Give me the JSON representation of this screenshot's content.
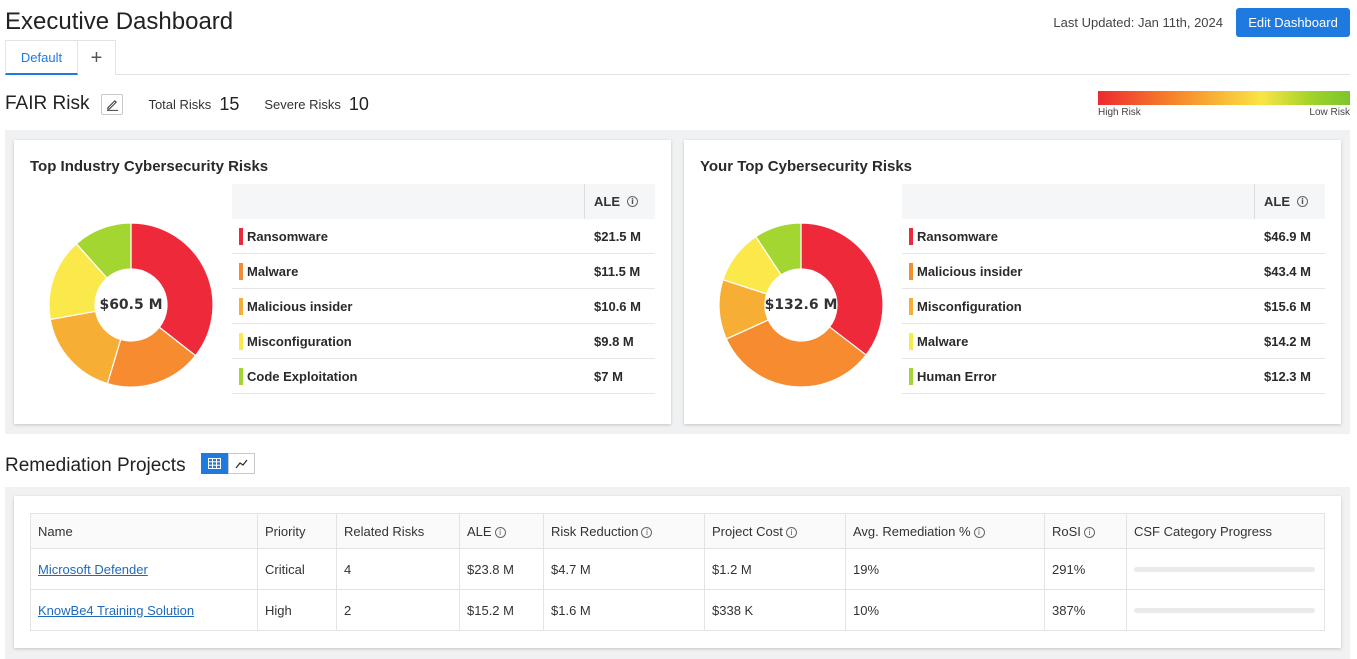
{
  "header": {
    "title": "Executive Dashboard",
    "last_updated": "Last Updated: Jan 11th, 2024",
    "edit_button": "Edit Dashboard"
  },
  "tabs": [
    {
      "label": "Default",
      "active": true
    },
    {
      "label": "+",
      "icon": "plus-icon"
    }
  ],
  "fair": {
    "title": "FAIR Risk",
    "edit_icon": "pencil-icon",
    "total_risks_label": "Total Risks",
    "total_risks_value": "15",
    "severe_risks_label": "Severe Risks",
    "severe_risks_value": "10",
    "scale_high": "High Risk",
    "scale_low": "Low Risk"
  },
  "industry": {
    "title": "Top Industry Cybersecurity Risks",
    "total": "$60.5 M",
    "col_header": "ALE",
    "rows": [
      {
        "name": "Ransomware",
        "value": "$21.5 M",
        "amount": 21.5,
        "color": "#ee2a3a"
      },
      {
        "name": "Malware",
        "value": "$11.5 M",
        "amount": 11.5,
        "color": "#f68c2f"
      },
      {
        "name": "Malicious insider",
        "value": "$10.6 M",
        "amount": 10.6,
        "color": "#f7ae35"
      },
      {
        "name": "Misconfiguration",
        "value": "$9.8 M",
        "amount": 9.8,
        "color": "#fbe84b"
      },
      {
        "name": "Code Exploitation",
        "value": "$7 M",
        "amount": 7,
        "color": "#a3d631"
      }
    ]
  },
  "yours": {
    "title": "Your Top Cybersecurity Risks",
    "total": "$132.6 M",
    "col_header": "ALE",
    "rows": [
      {
        "name": "Ransomware",
        "value": "$46.9 M",
        "amount": 46.9,
        "color": "#ee2a3a"
      },
      {
        "name": "Malicious insider",
        "value": "$43.4 M",
        "amount": 43.4,
        "color": "#f68c2f"
      },
      {
        "name": "Misconfiguration",
        "value": "$15.6 M",
        "amount": 15.6,
        "color": "#f7ae35"
      },
      {
        "name": "Malware",
        "value": "$14.2 M",
        "amount": 14.2,
        "color": "#fbe84b"
      },
      {
        "name": "Human Error",
        "value": "$12.3 M",
        "amount": 12.3,
        "color": "#a3d631"
      }
    ]
  },
  "remediation": {
    "title": "Remediation Projects",
    "view_icons": [
      "table-icon",
      "line-chart-icon"
    ],
    "columns": [
      "Name",
      "Priority",
      "Related Risks",
      "ALE",
      "Risk Reduction",
      "Project Cost",
      "Avg. Remediation %",
      "RoSI",
      "CSF Category Progress"
    ],
    "rows": [
      {
        "name": "Microsoft Defender",
        "priority": "Critical",
        "related": "4",
        "ale": "$23.8 M",
        "reduction": "$4.7 M",
        "cost": "$1.2 M",
        "avg": "19%",
        "rosi": "291%",
        "progress": 0
      },
      {
        "name": "KnowBe4 Training Solution",
        "priority": "High",
        "related": "2",
        "ale": "$15.2 M",
        "reduction": "$1.6 M",
        "cost": "$338 K",
        "avg": "10%",
        "rosi": "387%",
        "progress": 0
      }
    ]
  }
}
